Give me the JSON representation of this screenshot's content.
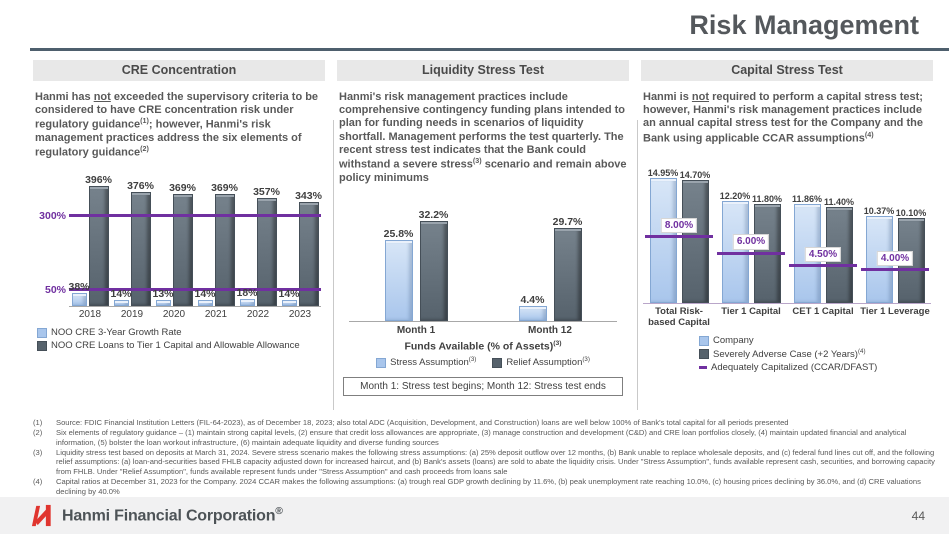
{
  "slide": {
    "title": "Risk Management",
    "page_number": "44",
    "footer_brand": "Hanmi Financial Corporation",
    "brand_mark": "®"
  },
  "accent_colors": {
    "light_bar": "#a9c6ec",
    "dark_bar": "#56626c",
    "threshold_purple": "#7030a0",
    "logo_red": "#e0352f"
  },
  "panels": {
    "cre": {
      "header": "CRE Concentration",
      "paragraph": [
        {
          "t": "Hanmi has "
        },
        {
          "t": "not",
          "u": true
        },
        {
          "t": " exceeded the supervisory criteria to be considered to have CRE concentration risk under regulatory guidance"
        },
        {
          "t": "(1)",
          "sup": true
        },
        {
          "t": "; however, Hanmi's risk management practices address the six elements of regulatory guidance"
        },
        {
          "t": "(2)",
          "sup": true
        }
      ]
    },
    "liquidity": {
      "header": "Liquidity Stress Test",
      "paragraph": [
        {
          "t": "Hanmi's risk management practices include comprehensive contingency funding plans intended to plan for funding needs in scenarios of liquidity shortfall. Management performs the test quarterly. The recent stress test indicates that the Bank could withstand a severe stress"
        },
        {
          "t": "(3)",
          "sup": true
        },
        {
          "t": " scenario and remain above policy minimums"
        }
      ],
      "axis_title_segments": [
        {
          "t": "Funds Available (% of Assets)"
        },
        {
          "t": "(3)",
          "sup": true
        }
      ],
      "legend1": [
        {
          "t": "Stress Assumption"
        },
        {
          "t": "(3)",
          "sup": true
        }
      ],
      "legend2": [
        {
          "t": "Relief Assumption"
        },
        {
          "t": "(3)",
          "sup": true
        }
      ]
    },
    "capital": {
      "header": "Capital Stress Test",
      "paragraph": [
        {
          "t": "Hanmi is "
        },
        {
          "t": "not",
          "u": true
        },
        {
          "t": " required to perform a capital stress test; however, Hanmi's risk management practices include an annual capital stress test for the Company and the Bank using applicable CCAR assumptions"
        },
        {
          "t": "(4)",
          "sup": true
        }
      ],
      "legend2": [
        {
          "t": "Severely Adverse Case (+2 Years)"
        },
        {
          "t": "(4)",
          "sup": true
        }
      ]
    }
  },
  "chart_data": [
    {
      "type": "bar",
      "title": "CRE Concentration",
      "categories": [
        "2018",
        "2019",
        "2020",
        "2021",
        "2022",
        "2023"
      ],
      "series": [
        {
          "name": "NOO CRE 3-Year Growth Rate",
          "color": "#a9c6ec",
          "values": [
            38,
            14,
            13,
            14,
            18,
            14
          ],
          "labels": [
            "38%",
            "14%",
            "13%",
            "14%",
            "18%",
            "14%"
          ]
        },
        {
          "name": "NOO CRE Loans to Tier 1 Capital and Allowable Allowance",
          "color": "#56626c",
          "values": [
            396,
            376,
            369,
            369,
            357,
            343
          ],
          "labels": [
            "396%",
            "376%",
            "369%",
            "369%",
            "357%",
            "343%"
          ]
        }
      ],
      "thresholds": [
        {
          "value": 300,
          "label": "300%"
        },
        {
          "value": 50,
          "label": "50%"
        }
      ],
      "ylim": [
        0,
        430
      ],
      "unit": "%",
      "legend_position": "bottom-left",
      "grid": false
    },
    {
      "type": "bar",
      "title": "Liquidity Stress Test",
      "categories": [
        "Month 1",
        "Month 12"
      ],
      "series": [
        {
          "name": "Stress Assumption",
          "color": "#a9c6ec",
          "values": [
            25.8,
            4.4
          ],
          "labels": [
            "25.8%",
            "4.4%"
          ]
        },
        {
          "name": "Relief Assumption",
          "color": "#56626c",
          "values": [
            32.2,
            29.7
          ],
          "labels": [
            "32.2%",
            "29.7%"
          ]
        }
      ],
      "xlabel": "Funds Available (% of Assets)",
      "ylim": [
        0,
        36
      ],
      "unit": "%",
      "note": "Month 1: Stress test begins; Month 12: Stress test ends",
      "legend_position": "bottom-center",
      "grid": false
    },
    {
      "type": "bar",
      "title": "Capital Stress Test",
      "categories": [
        "Total Risk-based Capital",
        "Tier 1 Capital",
        "CET 1 Capital",
        "Tier 1 Leverage"
      ],
      "series": [
        {
          "name": "Company",
          "color": "#a9c6ec",
          "values": [
            14.95,
            12.2,
            11.86,
            10.37
          ],
          "labels": [
            "14.95%",
            "12.20%",
            "11.86%",
            "10.37%"
          ]
        },
        {
          "name": "Severely Adverse Case (+2 Years)",
          "color": "#56626c",
          "values": [
            14.7,
            11.8,
            11.4,
            10.1
          ],
          "labels": [
            "14.70%",
            "11.80%",
            "11.40%",
            "10.10%"
          ]
        }
      ],
      "group_thresholds": {
        "name": "Adequately Capitalized (CCAR/DFAST)",
        "color": "#7030a0",
        "values": [
          8.0,
          6.0,
          4.5,
          4.0
        ],
        "labels": [
          "8.00%",
          "6.00%",
          "4.50%",
          "4.00%"
        ]
      },
      "ylim": [
        0,
        16
      ],
      "unit": "%",
      "legend_position": "bottom-center",
      "grid": false
    }
  ],
  "footnotes": [
    {
      "num": "(1)",
      "text": "Source: FDIC Financial Institution Letters (FIL-64-2023), as of December 18, 2023; also total ADC (Acquisition, Development, and Construction) loans are well below 100% of Bank's total capital for all periods presented"
    },
    {
      "num": "(2)",
      "text": "Six elements of regulatory guidance – (1) maintain strong capital levels, (2) ensure that credit loss allowances are appropriate, (3) manage construction and development (C&D) and CRE loan portfolios closely, (4) maintain updated financial and analytical information, (5) bolster the loan workout infrastructure, (6) maintain adequate liquidity and diverse funding sources"
    },
    {
      "num": "(3)",
      "text": "Liquidity stress test based on deposits at March 31, 2024. Severe stress scenario makes the following stress assumptions: (a) 25% deposit outflow over 12 months, (b) Bank unable to replace wholesale deposits, and (c) federal fund lines cut off, and the following relief assumptions: (a) loan-and-securities based FHLB capacity adjusted down for increased haircut, and (b) Bank's assets (loans) are sold to abate the liquidity crisis. Under \"Stress Assumption\", funds available represent cash, securities, and borrowing capacity from FHLB. Under \"Relief Assumption\", funds available represent funds under \"Stress Assumption\" and cash proceeds from loans sale"
    },
    {
      "num": "(4)",
      "text": "Capital ratios at December 31, 2023 for the Company. 2024 CCAR makes the following assumptions: (a) trough real GDP growth declining by 11.6%, (b) peak unemployment rate reaching 10.0%, (c) housing prices declining by 36.0%, and (d) CRE valuations declining by 40.0%"
    }
  ]
}
